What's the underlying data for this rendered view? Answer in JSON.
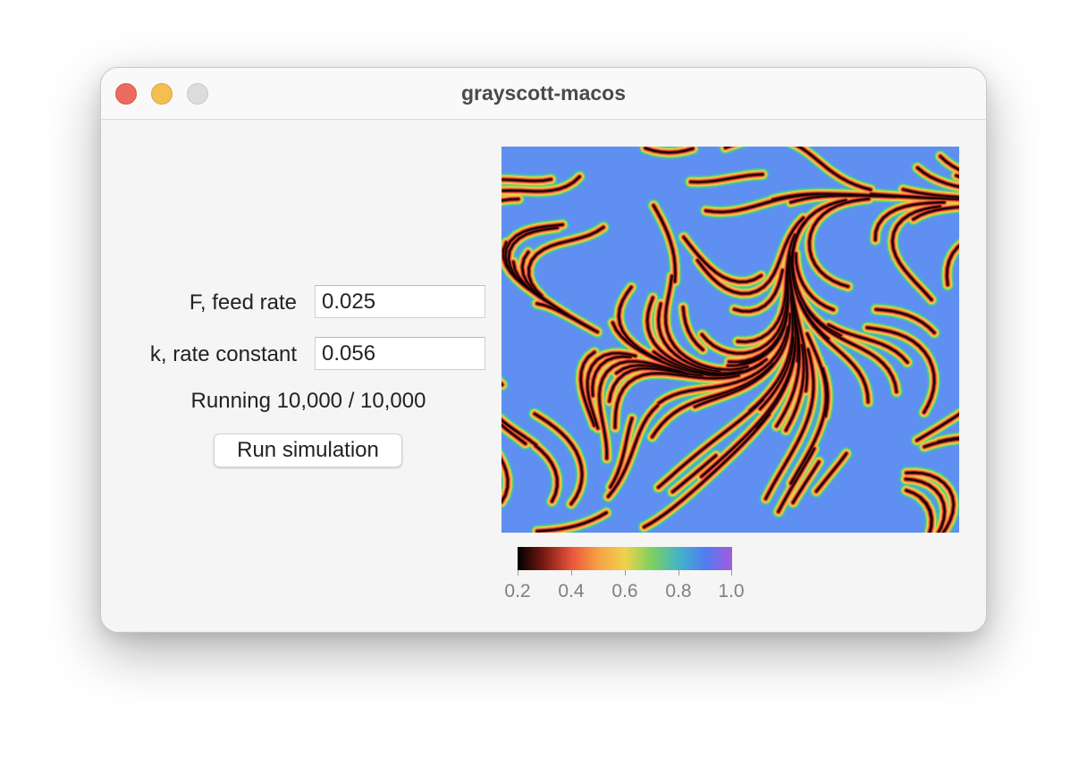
{
  "window": {
    "title": "grayscott-macos"
  },
  "controls": {
    "feed_label": "F, feed rate",
    "feed_value": "0.025",
    "kill_label": "k, rate constant",
    "kill_value": "0.056",
    "status": "Running 10,000 / 10,000",
    "run_label": "Run simulation"
  },
  "colormap": {
    "stops": [
      "#000000",
      "#7a1a14",
      "#e9553a",
      "#f7a046",
      "#f0d24c",
      "#7bd15e",
      "#43b4c8",
      "#4f7df2",
      "#a25bdc"
    ],
    "ticks": [
      "0.2",
      "0.4",
      "0.6",
      "0.8",
      "1.0"
    ],
    "range": [
      0.2,
      1.0
    ]
  },
  "colors": {
    "close": "#ed6a5e",
    "minimize": "#f5bf4f",
    "zoom": "#dcdcdc"
  },
  "icons": {
    "close": "traffic-light-close",
    "minimize": "traffic-light-minimize",
    "zoom": "traffic-light-zoom"
  }
}
